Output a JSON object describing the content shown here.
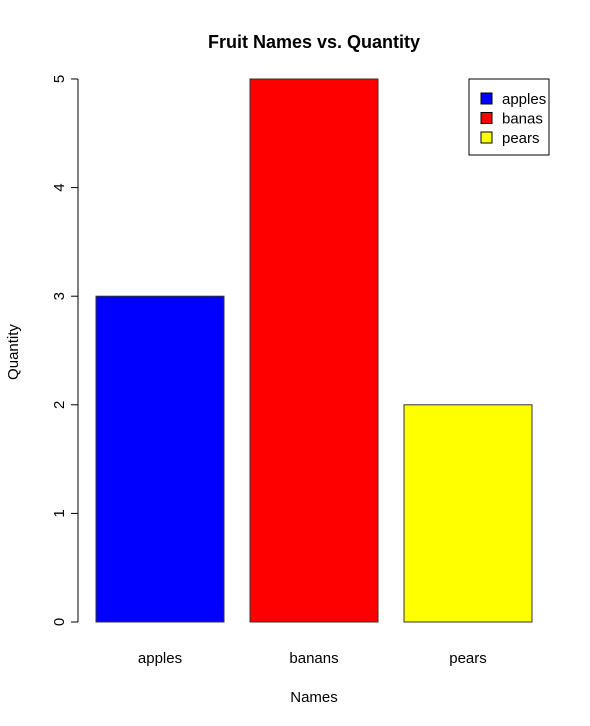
{
  "chart_data": {
    "type": "bar",
    "title": "Fruit Names vs. Quantity",
    "xlabel": "Names",
    "ylabel": "Quantity",
    "categories": [
      "apples",
      "banans",
      "pears"
    ],
    "values": [
      3,
      5,
      2
    ],
    "colors": [
      "#0000ff",
      "#ff0000",
      "#ffff00"
    ],
    "ylim": [
      0,
      5
    ],
    "yticks": [
      0,
      1,
      2,
      3,
      4,
      5
    ],
    "grid": false,
    "legend": {
      "placement": "top-right",
      "entries": [
        {
          "label": "apples",
          "color": "#0000ff"
        },
        {
          "label": "banas",
          "color": "#ff0000"
        },
        {
          "label": "pears",
          "color": "#ffff00"
        }
      ]
    }
  }
}
